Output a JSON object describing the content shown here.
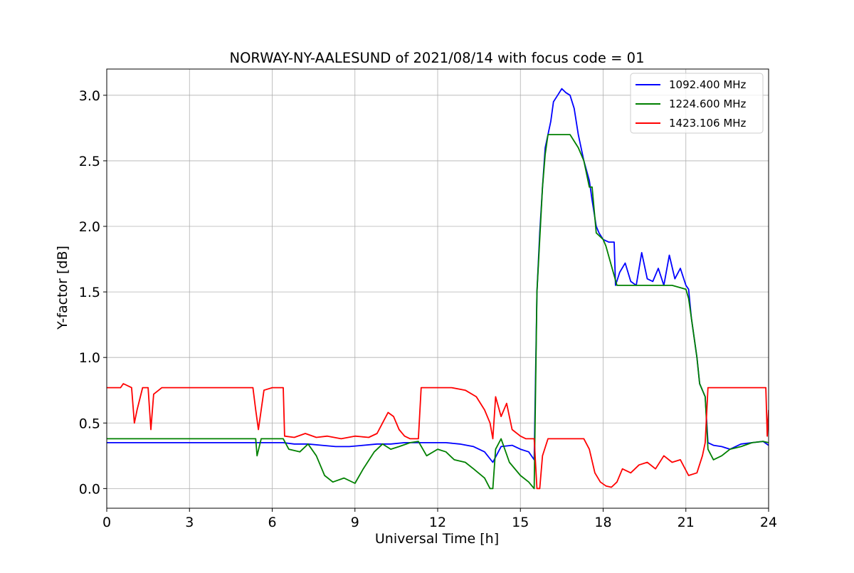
{
  "chart_data": {
    "type": "line",
    "title": "NORWAY-NY-AALESUND of 2021/08/14 with focus code = 01",
    "xlabel": "Universal Time [h]",
    "ylabel": "Y-factor [dB]",
    "xlim": [
      0,
      24
    ],
    "ylim": [
      -0.15,
      3.2
    ],
    "xticks": [
      0,
      3,
      6,
      9,
      12,
      15,
      18,
      21,
      24
    ],
    "xtick_labels": [
      "0",
      "3",
      "6",
      "9",
      "12",
      "15",
      "18",
      "21",
      "24"
    ],
    "yticks": [
      0.0,
      0.5,
      1.0,
      1.5,
      2.0,
      2.5,
      3.0
    ],
    "ytick_labels": [
      "0.0",
      "0.5",
      "1.0",
      "1.5",
      "2.0",
      "2.5",
      "3.0"
    ],
    "grid": true,
    "legend_position": "top-right",
    "series": [
      {
        "name": "1092.400 MHz",
        "color": "#0000ff",
        "x": [
          0,
          0.5,
          1.0,
          2.0,
          3.0,
          5.0,
          6.0,
          6.4,
          6.8,
          7.3,
          7.8,
          8.3,
          8.8,
          9.3,
          9.8,
          10.3,
          10.8,
          11.3,
          11.8,
          12.3,
          12.8,
          13.3,
          13.7,
          14.0,
          14.3,
          14.7,
          15.0,
          15.3,
          15.5,
          15.6,
          15.7,
          15.8,
          15.9,
          16.0,
          16.1,
          16.2,
          16.35,
          16.5,
          16.65,
          16.8,
          16.95,
          17.1,
          17.3,
          17.5,
          17.6,
          17.75,
          17.85,
          18.0,
          18.2,
          18.4,
          18.45,
          18.6,
          18.8,
          19.0,
          19.2,
          19.4,
          19.6,
          19.8,
          20.0,
          20.2,
          20.4,
          20.6,
          20.8,
          21.0,
          21.1,
          21.2,
          21.3,
          21.4,
          21.5,
          21.6,
          21.7,
          21.8,
          22.0,
          22.3,
          22.6,
          23.0,
          23.4,
          23.8,
          24.0
        ],
        "y": [
          0.35,
          0.35,
          0.35,
          0.35,
          0.35,
          0.35,
          0.35,
          0.35,
          0.34,
          0.34,
          0.33,
          0.32,
          0.32,
          0.33,
          0.34,
          0.34,
          0.35,
          0.35,
          0.35,
          0.35,
          0.34,
          0.32,
          0.28,
          0.2,
          0.32,
          0.33,
          0.3,
          0.28,
          0.22,
          1.5,
          1.95,
          2.3,
          2.6,
          2.7,
          2.8,
          2.95,
          3.0,
          3.05,
          3.02,
          3.0,
          2.9,
          2.7,
          2.5,
          2.35,
          2.2,
          2.0,
          1.95,
          1.9,
          1.88,
          1.88,
          1.55,
          1.65,
          1.72,
          1.58,
          1.55,
          1.8,
          1.6,
          1.58,
          1.68,
          1.55,
          1.78,
          1.6,
          1.68,
          1.55,
          1.52,
          1.3,
          1.15,
          1.0,
          0.8,
          0.75,
          0.7,
          0.35,
          0.33,
          0.32,
          0.3,
          0.34,
          0.35,
          0.36,
          0.33
        ]
      },
      {
        "name": "1224.600 MHz",
        "color": "#008000",
        "x": [
          0,
          1.0,
          2.0,
          3.0,
          5.0,
          5.4,
          5.45,
          5.6,
          6.0,
          6.4,
          6.6,
          7.0,
          7.3,
          7.6,
          7.9,
          8.2,
          8.6,
          9.0,
          9.3,
          9.7,
          10.0,
          10.3,
          10.6,
          11.0,
          11.3,
          11.6,
          12.0,
          12.3,
          12.6,
          13.0,
          13.3,
          13.7,
          13.9,
          14.0,
          14.1,
          14.3,
          14.6,
          15.0,
          15.3,
          15.5,
          15.6,
          15.7,
          15.8,
          15.9,
          16.0,
          16.2,
          16.5,
          16.8,
          17.1,
          17.3,
          17.5,
          17.6,
          17.75,
          17.85,
          18.0,
          18.1,
          18.3,
          18.5,
          19.0,
          19.5,
          20.0,
          20.5,
          21.0,
          21.1,
          21.2,
          21.3,
          21.4,
          21.5,
          21.6,
          21.7,
          21.8,
          22.0,
          22.3,
          22.6,
          23.0,
          23.4,
          23.8,
          24.0
        ],
        "y": [
          0.38,
          0.38,
          0.38,
          0.38,
          0.38,
          0.38,
          0.25,
          0.38,
          0.38,
          0.38,
          0.3,
          0.28,
          0.34,
          0.25,
          0.1,
          0.05,
          0.08,
          0.04,
          0.15,
          0.28,
          0.34,
          0.3,
          0.32,
          0.35,
          0.36,
          0.25,
          0.3,
          0.28,
          0.22,
          0.2,
          0.15,
          0.08,
          0.0,
          0.0,
          0.3,
          0.38,
          0.2,
          0.1,
          0.05,
          0.0,
          1.5,
          1.9,
          2.3,
          2.55,
          2.7,
          2.7,
          2.7,
          2.7,
          2.6,
          2.5,
          2.3,
          2.3,
          1.95,
          1.93,
          1.9,
          1.85,
          1.7,
          1.55,
          1.55,
          1.55,
          1.55,
          1.55,
          1.52,
          1.45,
          1.3,
          1.15,
          1.0,
          0.8,
          0.75,
          0.7,
          0.3,
          0.22,
          0.25,
          0.3,
          0.32,
          0.35,
          0.36,
          0.35
        ]
      },
      {
        "name": "1423.106 MHz",
        "color": "#ff0000",
        "x": [
          0,
          0.5,
          0.6,
          0.9,
          1.0,
          1.1,
          1.3,
          1.5,
          1.6,
          1.7,
          2.0,
          3.0,
          4.0,
          5.0,
          5.3,
          5.4,
          5.5,
          5.7,
          6.0,
          6.4,
          6.45,
          6.8,
          7.2,
          7.6,
          8.0,
          8.5,
          9.0,
          9.5,
          9.8,
          10.0,
          10.2,
          10.4,
          10.6,
          10.8,
          11.0,
          11.3,
          11.4,
          11.6,
          12.0,
          12.5,
          13.0,
          13.4,
          13.7,
          13.9,
          14.0,
          14.1,
          14.3,
          14.5,
          14.7,
          15.0,
          15.2,
          15.5,
          15.6,
          15.7,
          15.8,
          16.0,
          16.3,
          16.6,
          17.0,
          17.3,
          17.5,
          17.7,
          17.9,
          18.1,
          18.3,
          18.5,
          18.7,
          19.0,
          19.3,
          19.6,
          19.9,
          20.2,
          20.5,
          20.8,
          21.1,
          21.4,
          21.6,
          21.7,
          21.8,
          22.0,
          22.5,
          23.0,
          23.5,
          23.9,
          23.95,
          24.0
        ],
        "y": [
          0.77,
          0.77,
          0.8,
          0.77,
          0.5,
          0.6,
          0.77,
          0.77,
          0.45,
          0.72,
          0.77,
          0.77,
          0.77,
          0.77,
          0.77,
          0.6,
          0.45,
          0.75,
          0.77,
          0.77,
          0.4,
          0.39,
          0.42,
          0.39,
          0.4,
          0.38,
          0.4,
          0.39,
          0.42,
          0.5,
          0.58,
          0.55,
          0.45,
          0.4,
          0.38,
          0.38,
          0.77,
          0.77,
          0.77,
          0.77,
          0.75,
          0.7,
          0.6,
          0.5,
          0.38,
          0.7,
          0.55,
          0.65,
          0.45,
          0.4,
          0.38,
          0.38,
          0.0,
          0.0,
          0.25,
          0.38,
          0.38,
          0.38,
          0.38,
          0.38,
          0.3,
          0.12,
          0.05,
          0.02,
          0.01,
          0.05,
          0.15,
          0.12,
          0.18,
          0.2,
          0.15,
          0.25,
          0.2,
          0.22,
          0.1,
          0.12,
          0.25,
          0.35,
          0.77,
          0.77,
          0.77,
          0.77,
          0.77,
          0.77,
          0.4,
          0.6
        ]
      }
    ]
  }
}
